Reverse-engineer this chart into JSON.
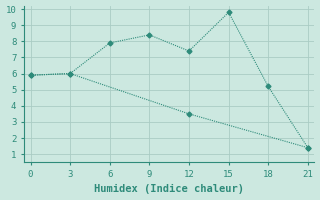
{
  "xlabel": "Humidex (Indice chaleur)",
  "line1_x": [
    0,
    3,
    6,
    9,
    12,
    15,
    18,
    21
  ],
  "line1_y": [
    5.9,
    6.0,
    7.9,
    8.4,
    7.4,
    9.8,
    5.2,
    1.4
  ],
  "line2_x": [
    0,
    3,
    12,
    21
  ],
  "line2_y": [
    5.9,
    6.0,
    3.5,
    1.4
  ],
  "line_color": "#2e8b7a",
  "bg_color": "#cce8e0",
  "grid_color": "#aaccc4",
  "xlim": [
    -0.5,
    21.5
  ],
  "ylim": [
    0.5,
    10.2
  ],
  "xticks": [
    0,
    3,
    6,
    9,
    12,
    15,
    18,
    21
  ],
  "yticks": [
    1,
    2,
    3,
    4,
    5,
    6,
    7,
    8,
    9,
    10
  ],
  "marker": "D",
  "markersize": 2.5,
  "linewidth": 0.8,
  "font_family": "monospace",
  "xlabel_fontsize": 7.5,
  "tick_fontsize": 6.5
}
